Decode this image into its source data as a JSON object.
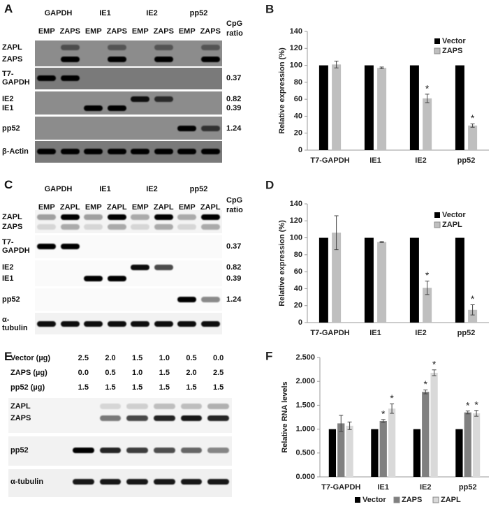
{
  "blots": [
    {
      "panel": "A",
      "genes": [
        "GAPDH",
        "IE1",
        "IE2",
        "pp52"
      ],
      "lanes": [
        "EMP",
        "ZAPS",
        "EMP",
        "ZAPS",
        "EMP",
        "ZAPS",
        "EMP",
        "ZAPS"
      ],
      "cpg_header": [
        "CpG",
        "ratio"
      ],
      "rows": [
        {
          "labels": [
            "ZAPL",
            "ZAPS"
          ]
        },
        {
          "labels": [
            "T7-GAPDH"
          ],
          "cpg": [
            0.37
          ]
        },
        {
          "labels": [
            "IE2",
            "IE1"
          ],
          "cpg": [
            0.82,
            0.39
          ]
        },
        {
          "labels": [
            "pp52"
          ],
          "cpg": [
            1.24
          ]
        },
        {
          "labels": [
            "β-Actin"
          ]
        }
      ]
    },
    {
      "panel": "C",
      "genes": [
        "GAPDH",
        "IE1",
        "IE2",
        "pp52"
      ],
      "lanes": [
        "EMP",
        "ZAPL",
        "EMP",
        "ZAPL",
        "EMP",
        "ZAPL",
        "EMP",
        "ZAPL"
      ],
      "cpg_header": [
        "CpG",
        "ratio"
      ],
      "rows": [
        {
          "labels": [
            "ZAPL",
            "ZAPS"
          ]
        },
        {
          "labels": [
            "T7-GAPDH"
          ],
          "cpg": [
            0.37
          ]
        },
        {
          "labels": [
            "IE2",
            "IE1"
          ],
          "cpg": [
            0.82,
            0.39
          ]
        },
        {
          "labels": [
            "pp52"
          ],
          "cpg": [
            1.24
          ]
        },
        {
          "labels": [
            "α-tubulin"
          ]
        }
      ]
    },
    {
      "panel": "E",
      "conditions": [
        {
          "label": "Vector (µg)",
          "values": [
            "2.5",
            "2.0",
            "1.5",
            "1.0",
            "0.5",
            "0.0"
          ]
        },
        {
          "label": "ZAPS  (µg)",
          "values": [
            "0.0",
            "0.5",
            "1.0",
            "1.5",
            "2.0",
            "2.5"
          ]
        },
        {
          "label": "pp52 (µg)",
          "values": [
            "1.5",
            "1.5",
            "1.5",
            "1.5",
            "1.5",
            "1.5"
          ]
        }
      ],
      "rows": [
        {
          "labels": [
            "ZAPL",
            "ZAPS"
          ]
        },
        {
          "labels": [
            "pp52"
          ]
        },
        {
          "labels": [
            "α-tubulin"
          ]
        }
      ]
    }
  ],
  "chart_data": [
    {
      "type": "bar",
      "panel_label": "B",
      "ylabel": "Relative expression (%)",
      "categories": [
        "T7-GAPDH",
        "IE1",
        "IE2",
        "pp52"
      ],
      "series": [
        {
          "name": "Vector",
          "color": "#000000",
          "values": [
            100,
            100,
            100,
            100
          ]
        },
        {
          "name": "ZAPS",
          "color": "#bfbfbf",
          "values": [
            101,
            97,
            61,
            29
          ],
          "errors": [
            4,
            1,
            5,
            2
          ],
          "annotations": [
            null,
            null,
            "*",
            "*"
          ]
        }
      ],
      "ylim": [
        0,
        140
      ],
      "yticks": [
        0,
        20,
        40,
        60,
        80,
        100,
        120,
        140
      ],
      "legend": "upper right"
    },
    {
      "type": "bar",
      "panel_label": "D",
      "ylabel": "Relative expression (%)",
      "categories": [
        "T7-GAPDH",
        "IE1",
        "IE2",
        "pp52"
      ],
      "series": [
        {
          "name": "Vector",
          "color": "#000000",
          "values": [
            100,
            100,
            100,
            100
          ]
        },
        {
          "name": "ZAPL",
          "color": "#bfbfbf",
          "values": [
            106,
            95,
            41,
            15
          ],
          "errors": [
            20,
            0.5,
            8,
            6
          ],
          "annotations": [
            null,
            null,
            "*",
            "*"
          ]
        }
      ],
      "ylim": [
        0,
        140
      ],
      "yticks": [
        0,
        20,
        40,
        60,
        80,
        100,
        120,
        140
      ],
      "legend": "upper right"
    },
    {
      "type": "bar",
      "panel_label": "F",
      "ylabel": "Relative RNA levels",
      "categories": [
        "T7-GAPDH",
        "IE1",
        "IE2",
        "pp52"
      ],
      "series": [
        {
          "name": "Vector",
          "color": "#000000",
          "values": [
            1,
            1,
            1,
            1
          ]
        },
        {
          "name": "ZAPS",
          "color": "#808080",
          "values": [
            1.12,
            1.17,
            1.78,
            1.35
          ],
          "errors": [
            0.17,
            0.03,
            0.04,
            0.03
          ],
          "annotations": [
            null,
            "*",
            "*",
            "*"
          ]
        },
        {
          "name": "ZAPL",
          "color": "#d9d9d9",
          "values": [
            1.07,
            1.43,
            2.18,
            1.33
          ],
          "errors": [
            0.08,
            0.1,
            0.06,
            0.06
          ],
          "annotations": [
            null,
            "*",
            "*",
            "*"
          ]
        }
      ],
      "ylim": [
        0,
        2.5
      ],
      "yticks": [
        {
          "value": 0,
          "label": "0.000"
        },
        {
          "value": 0.5,
          "label": "0.500"
        },
        {
          "value": 1,
          "label": "1.000"
        },
        {
          "value": 1.5,
          "label": "1.500"
        },
        {
          "value": 2,
          "label": "2.000"
        },
        {
          "value": 2.5,
          "label": "2.500"
        }
      ],
      "legend": "lower center"
    }
  ]
}
